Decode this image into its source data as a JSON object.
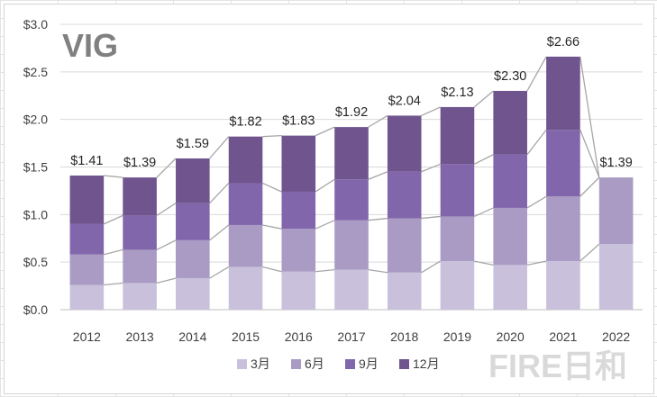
{
  "chart_data": {
    "type": "bar",
    "stacked": true,
    "title": "VIG",
    "categories": [
      "2012",
      "2013",
      "2014",
      "2015",
      "2016",
      "2017",
      "2018",
      "2019",
      "2020",
      "2021",
      "2022"
    ],
    "series": [
      {
        "name": "3月",
        "color": "#c9c1db",
        "values": [
          0.26,
          0.28,
          0.33,
          0.45,
          0.4,
          0.42,
          0.39,
          0.51,
          0.47,
          0.51,
          0.69
        ]
      },
      {
        "name": "6月",
        "color": "#a99bc3",
        "values": [
          0.32,
          0.35,
          0.4,
          0.44,
          0.45,
          0.52,
          0.57,
          0.47,
          0.6,
          0.68,
          0.7
        ]
      },
      {
        "name": "9月",
        "color": "#8266ab",
        "values": [
          0.32,
          0.36,
          0.39,
          0.44,
          0.39,
          0.43,
          0.49,
          0.55,
          0.56,
          0.7,
          0.0
        ]
      },
      {
        "name": "12月",
        "color": "#6f548e",
        "values": [
          0.51,
          0.4,
          0.47,
          0.49,
          0.59,
          0.55,
          0.59,
          0.6,
          0.67,
          0.77,
          0.0
        ]
      }
    ],
    "totals": [
      "$1.41",
      "$1.39",
      "$1.59",
      "$1.82",
      "$1.83",
      "$1.92",
      "$2.04",
      "$2.13",
      "$2.30",
      "$2.66",
      "$1.39"
    ],
    "y_ticks": [
      "$0.0",
      "$0.5",
      "$1.0",
      "$1.5",
      "$2.0",
      "$2.5",
      "$3.0"
    ],
    "ylim": [
      0,
      3.0
    ],
    "grid": true,
    "series_lines": true,
    "legend_position": "bottom"
  },
  "watermark": "FIRE日和"
}
